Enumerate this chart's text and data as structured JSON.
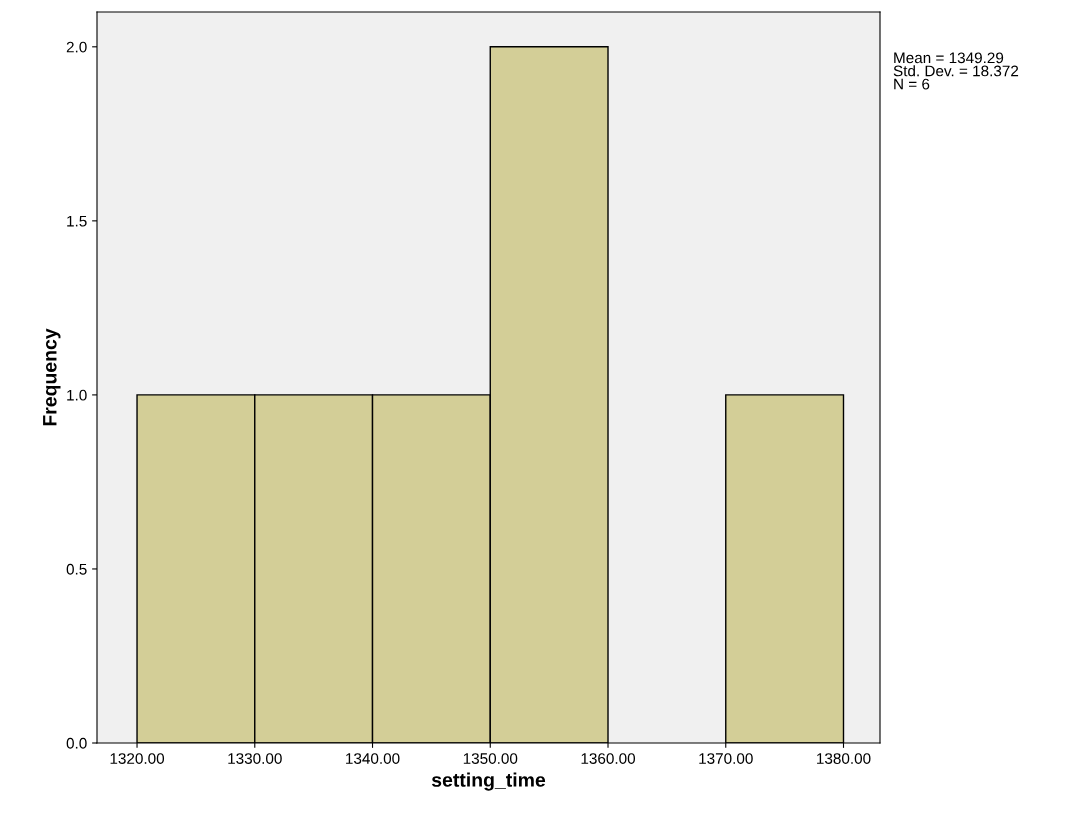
{
  "chart_data": {
    "type": "histogram",
    "xlabel": "setting_time",
    "ylabel": "Frequency",
    "bins": [
      1320,
      1330,
      1340,
      1350,
      1360,
      1370,
      1380
    ],
    "values": [
      1,
      1,
      1,
      2,
      0,
      1
    ],
    "color": "#d3ce97",
    "xlim": [
      1316.6,
      1383.1
    ],
    "xticks": [
      {
        "value": 1320,
        "label": "1320.00"
      },
      {
        "value": 1330,
        "label": "1330.00"
      },
      {
        "value": 1340,
        "label": "1340.00"
      },
      {
        "value": 1350,
        "label": "1350.00"
      },
      {
        "value": 1360,
        "label": "1360.00"
      },
      {
        "value": 1370,
        "label": "1370.00"
      },
      {
        "value": 1380,
        "label": "1380.00"
      }
    ],
    "ylim": [
      0,
      2.1
    ],
    "yticks": [
      {
        "value": 0,
        "label": "0.0"
      },
      {
        "value": 0.5,
        "label": "0.5"
      },
      {
        "value": 1,
        "label": "1.0"
      },
      {
        "value": 1.5,
        "label": "1.5"
      },
      {
        "value": 2,
        "label": "2.0"
      }
    ],
    "annotations": [
      "Mean = 1349.29\nStd. Dev. = 18.372\nN = 6"
    ],
    "grid": false,
    "legend": false
  }
}
